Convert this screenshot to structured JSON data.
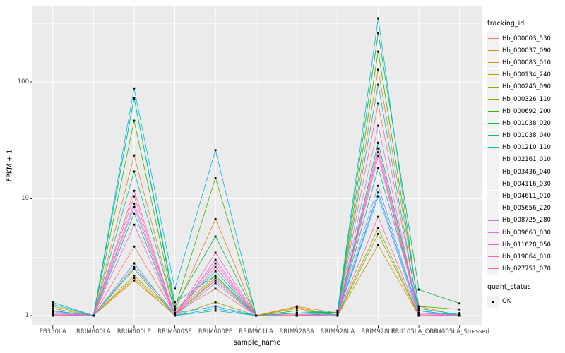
{
  "style": {
    "panel_background": "#EBEBEB",
    "grid_color": "#FFFFFF",
    "tick_color": "#333333",
    "tick_text_color": "#4D4D4D",
    "point_color": "#000000",
    "legend_key_background": "#F2F2F2"
  },
  "chart_data": {
    "type": "line",
    "title": "",
    "xlabel": "sample_name",
    "ylabel": "FPKM + 1",
    "y_scale": "log10",
    "y_ticks": [
      1,
      10,
      100
    ],
    "ylim": [
      0.83,
      480
    ],
    "grid": "on",
    "legend_position": "right",
    "legend_title": "tracking_id",
    "point_legend_title": "quant_status",
    "point_legend_items": [
      "OK"
    ],
    "categories": [
      "PB350LA",
      "RRIM600LA",
      "RRIM600LE",
      "RRIM600SE",
      "RRIM600PE",
      "RRIM901LA",
      "RRIM928BA",
      "RRIM928LA",
      "RRIM928LE",
      "RRII105LA_Control",
      "RRII105LA_Stressed"
    ],
    "series": [
      {
        "name": "Hb_000003_530",
        "color": "#F8766D",
        "values": [
          1.02,
          1,
          3.9,
          1.05,
          1.7,
          1,
          1.02,
          1.02,
          65,
          1.1,
          1
        ]
      },
      {
        "name": "Hb_000037_090",
        "color": "#EA8331",
        "values": [
          1.0,
          1,
          23.5,
          1.1,
          6.7,
          1,
          1.2,
          1.05,
          127,
          1.2,
          1
        ]
      },
      {
        "name": "Hb_000083_010",
        "color": "#D89000",
        "values": [
          1.05,
          1,
          2.1,
          1.0,
          2.1,
          1,
          1.18,
          1.0,
          4.0,
          1.0,
          1
        ]
      },
      {
        "name": "Hb_000134_240",
        "color": "#C09B00",
        "values": [
          1.15,
          1,
          2.0,
          1.02,
          2.0,
          1,
          1.15,
          1.0,
          30,
          1.05,
          1
        ]
      },
      {
        "name": "Hb_000245_090",
        "color": "#A3A500",
        "values": [
          1.2,
          1,
          2.2,
          1.05,
          2.2,
          1,
          1.0,
          1.0,
          5.6,
          1.0,
          1
        ]
      },
      {
        "name": "Hb_000326_110",
        "color": "#7CAE00",
        "values": [
          1.05,
          1,
          2.5,
          1.0,
          1.3,
          1,
          1.0,
          1.0,
          5.0,
          1.0,
          1
        ]
      },
      {
        "name": "Hb_000692_200",
        "color": "#39B600",
        "values": [
          1.02,
          1,
          46.5,
          1.15,
          15.1,
          1,
          1.1,
          1.05,
          182,
          1.2,
          1.13
        ]
      },
      {
        "name": "Hb_001038_020",
        "color": "#00BB4E",
        "values": [
          1.05,
          1,
          73,
          1.2,
          4.75,
          1,
          1.05,
          1.07,
          261,
          1.67,
          1.27
        ]
      },
      {
        "name": "Hb_001038_040",
        "color": "#00BF7D",
        "values": [
          1.0,
          1,
          7.5,
          1.0,
          1.1,
          1,
          1.0,
          1.0,
          18.3,
          1.15,
          1.02
        ]
      },
      {
        "name": "Hb_001210_110",
        "color": "#00C1A3",
        "values": [
          1.1,
          1,
          17.1,
          1.1,
          2.4,
          1,
          1.05,
          1.02,
          30.2,
          1.1,
          1
        ]
      },
      {
        "name": "Hb_002161_010",
        "color": "#00BFC4",
        "values": [
          1.3,
          1,
          72,
          1.3,
          2.2,
          1,
          1.0,
          1.05,
          94.6,
          1.05,
          1.03
        ]
      },
      {
        "name": "Hb_003436_040",
        "color": "#00BAE0",
        "values": [
          1.25,
          1,
          88,
          1.7,
          26,
          1,
          1.05,
          1.1,
          350,
          1.1,
          1
        ]
      },
      {
        "name": "Hb_004116_030",
        "color": "#00B0F6",
        "values": [
          1.1,
          1,
          2.8,
          1.0,
          1.15,
          1,
          1.0,
          1.0,
          11.3,
          1.05,
          1.05
        ]
      },
      {
        "name": "Hb_004611_010",
        "color": "#35A2FF",
        "values": [
          1.0,
          1,
          2.6,
          1.05,
          1.2,
          1,
          1.0,
          1.0,
          10.5,
          1.0,
          1
        ]
      },
      {
        "name": "Hb_005656_220",
        "color": "#9590FF",
        "values": [
          1.08,
          1,
          2.8,
          1.0,
          1.9,
          1,
          1.0,
          1.02,
          12.9,
          1.05,
          1
        ]
      },
      {
        "name": "Hb_008725_280",
        "color": "#C77CFF",
        "values": [
          1.05,
          1,
          9.1,
          1.05,
          2.0,
          1,
          1.0,
          1.0,
          42.2,
          1.0,
          1
        ]
      },
      {
        "name": "Hb_009663_030",
        "color": "#E76BF3",
        "values": [
          1.0,
          1,
          8.5,
          1.0,
          3.0,
          1,
          1.0,
          1.0,
          23,
          1.05,
          1
        ]
      },
      {
        "name": "Hb_011628_050",
        "color": "#FA62DB",
        "values": [
          1.02,
          1,
          6.0,
          1.02,
          2.8,
          1,
          1.0,
          1.0,
          25,
          1.0,
          1
        ]
      },
      {
        "name": "Hb_019064_010",
        "color": "#FF62BC",
        "values": [
          1.0,
          1,
          11.7,
          1.0,
          3.45,
          1,
          1.02,
          1.0,
          27,
          1.02,
          1
        ]
      },
      {
        "name": "Hb_027751_070",
        "color": "#FF6A98",
        "values": [
          1.0,
          1,
          10.5,
          1.0,
          2.6,
          1,
          1.0,
          1.0,
          7.0,
          1.0,
          1
        ]
      }
    ]
  }
}
